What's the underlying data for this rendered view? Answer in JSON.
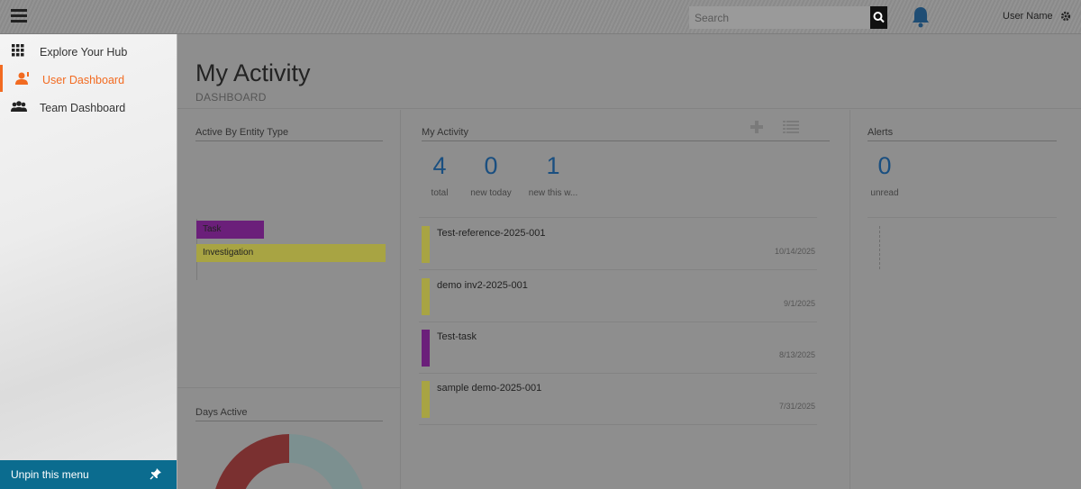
{
  "header": {
    "search_placeholder": "Search",
    "username": "User Name"
  },
  "sidebar": {
    "items": [
      {
        "label": "Explore Your Hub"
      },
      {
        "label": "User Dashboard"
      },
      {
        "label": "Team Dashboard"
      }
    ],
    "unpin_label": "Unpin this menu"
  },
  "page": {
    "title": "My Activity",
    "subtitle": "DASHBOARD"
  },
  "entity_panel": {
    "title": "Active By Entity Type",
    "bars": [
      {
        "label": "Task",
        "color": "#6b1f7a"
      },
      {
        "label": "Investigation",
        "color": "#a8a443"
      }
    ]
  },
  "days_panel": {
    "title": "Days Active"
  },
  "activity_panel": {
    "title": "My Activity",
    "stats": [
      {
        "value": "4",
        "label": "total"
      },
      {
        "value": "0",
        "label": "new today"
      },
      {
        "value": "1",
        "label": "new this w..."
      }
    ],
    "items": [
      {
        "title": "Test-reference-2025-001",
        "date": "10/14/2025",
        "color": "#a8a443"
      },
      {
        "title": "demo inv2-2025-001",
        "date": "9/1/2025",
        "color": "#a8a443"
      },
      {
        "title": "Test-task",
        "date": "8/13/2025",
        "color": "#6b1f7a"
      },
      {
        "title": "sample demo-2025-001",
        "date": "7/31/2025",
        "color": "#a8a443"
      }
    ]
  },
  "alerts_panel": {
    "title": "Alerts",
    "stat": {
      "value": "0",
      "label": "unread"
    }
  },
  "colors": {
    "accent": "#f26b21",
    "unpin_bg": "#0b6c8f",
    "stat_blue": "#1a4f80",
    "task": "#6b1f7a",
    "investigation": "#a8a443"
  }
}
